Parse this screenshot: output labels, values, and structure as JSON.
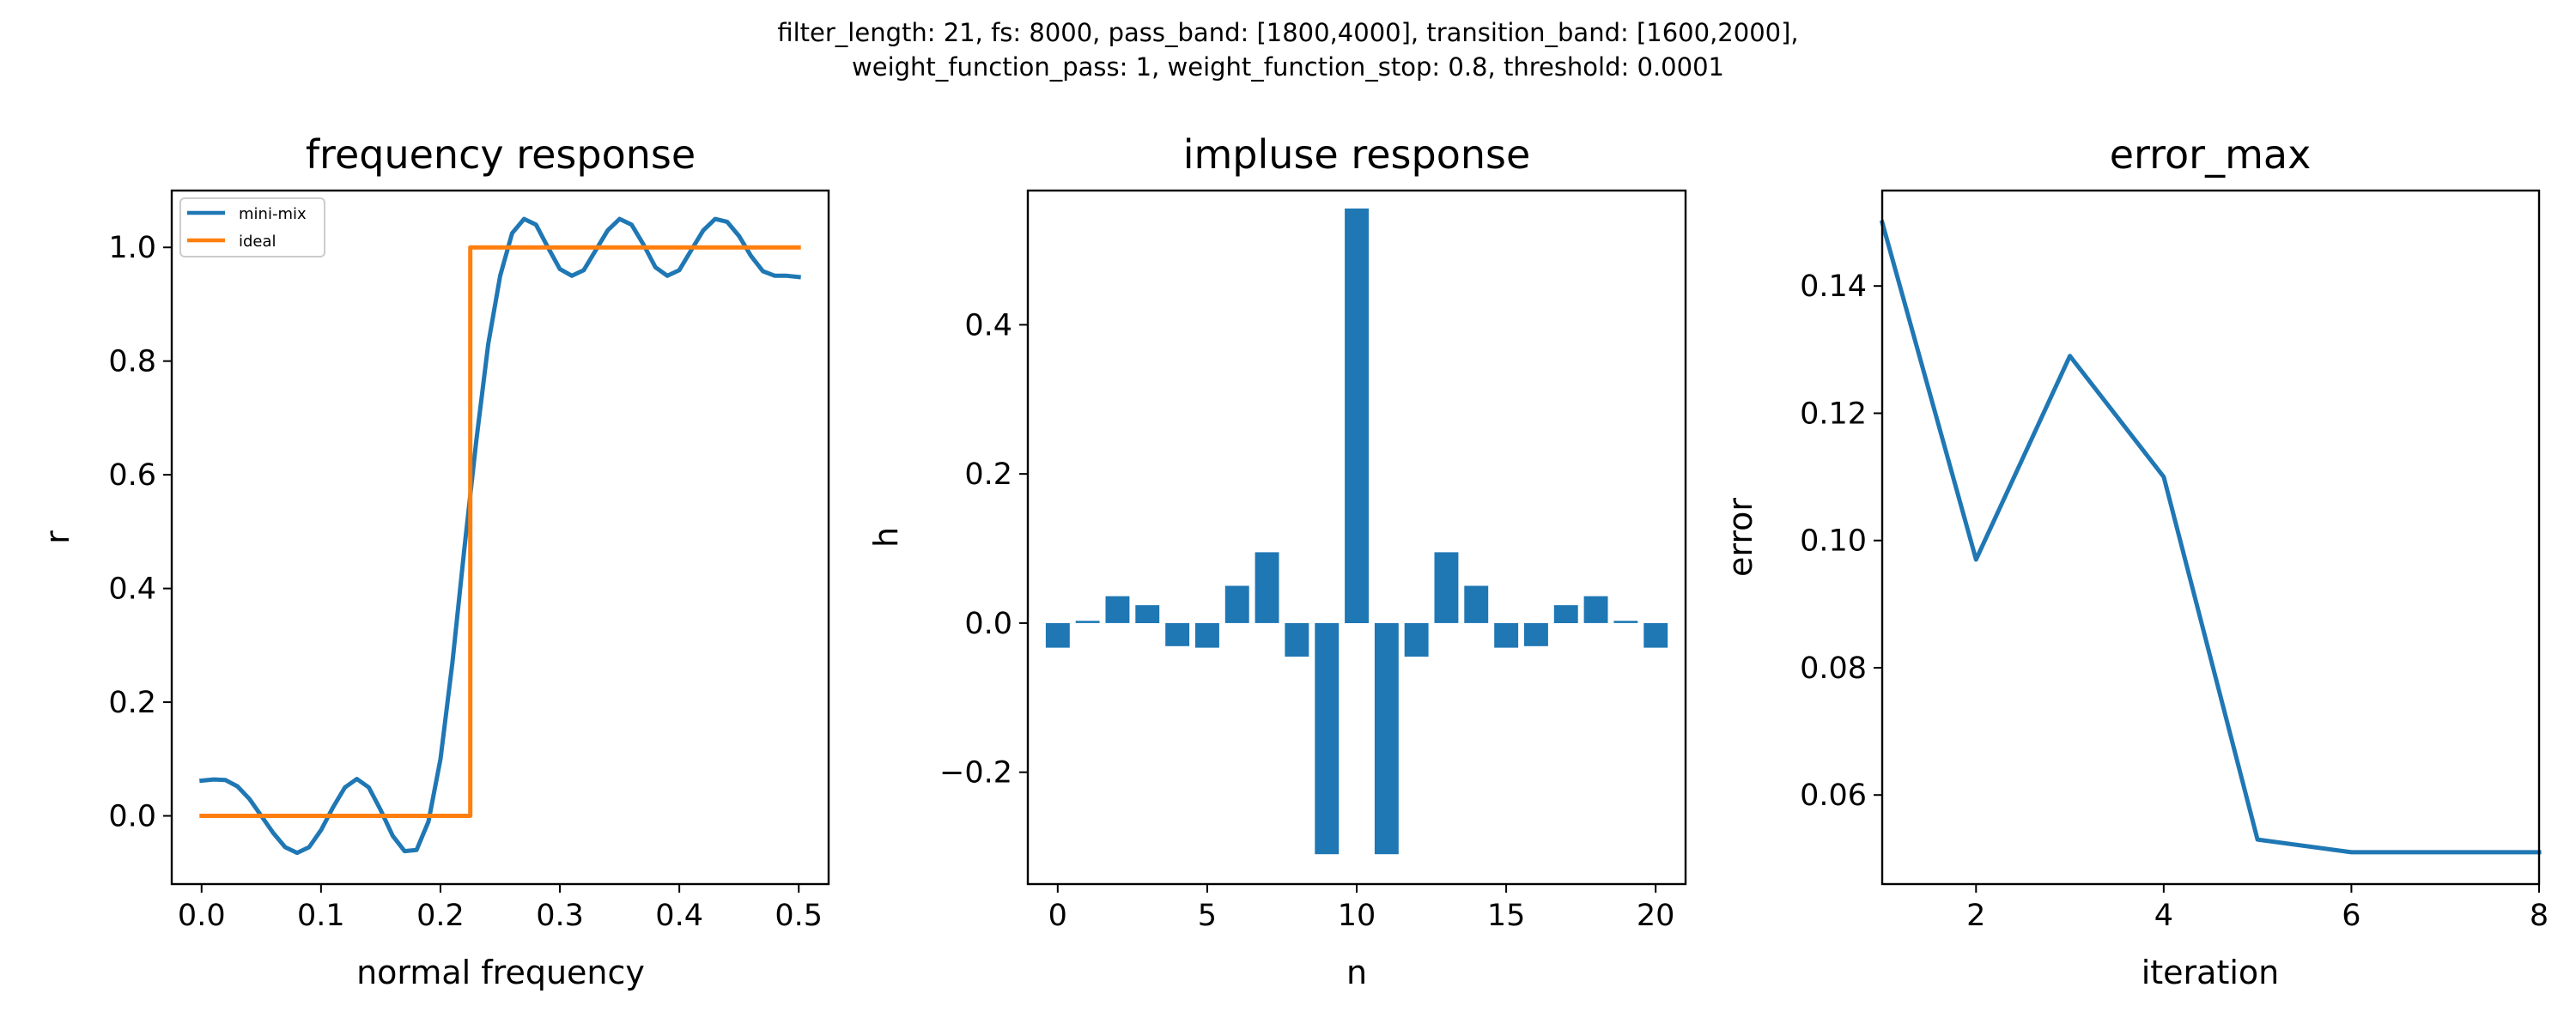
{
  "figure": {
    "suptitle_line1": "filter_length: 21, fs: 8000, pass_band: [1800,4000], transition_band: [1600,2000],",
    "suptitle_line2": "weight_function_pass: 1, weight_function_stop: 0.8,  threshold: 0.0001"
  },
  "colors": {
    "blue": "#1f77b4",
    "orange": "#ff7f0e"
  },
  "chart_data": [
    {
      "type": "line",
      "title": "frequency response",
      "xlabel": "normal frequency",
      "ylabel": "r",
      "xlim": [
        -0.025,
        0.525
      ],
      "ylim": [
        -0.12,
        1.1
      ],
      "xticks": [
        0.0,
        0.1,
        0.2,
        0.3,
        0.4,
        0.5
      ],
      "xtick_labels": [
        "0.0",
        "0.1",
        "0.2",
        "0.3",
        "0.4",
        "0.5"
      ],
      "yticks": [
        0.0,
        0.2,
        0.4,
        0.6,
        0.8,
        1.0
      ],
      "ytick_labels": [
        "0.0",
        "0.2",
        "0.4",
        "0.6",
        "0.8",
        "1.0"
      ],
      "legend": "top-left",
      "series": [
        {
          "name": "mini-mix",
          "color": "#1f77b4",
          "x": [
            0.0,
            0.01,
            0.02,
            0.03,
            0.04,
            0.05,
            0.06,
            0.07,
            0.08,
            0.09,
            0.1,
            0.11,
            0.12,
            0.13,
            0.14,
            0.15,
            0.16,
            0.17,
            0.18,
            0.19,
            0.2,
            0.21,
            0.22,
            0.23,
            0.24,
            0.25,
            0.26,
            0.27,
            0.28,
            0.29,
            0.3,
            0.31,
            0.32,
            0.33,
            0.34,
            0.35,
            0.36,
            0.37,
            0.38,
            0.39,
            0.4,
            0.41,
            0.42,
            0.43,
            0.44,
            0.45,
            0.46,
            0.47,
            0.48,
            0.49,
            0.5
          ],
          "y": [
            0.062,
            0.064,
            0.063,
            0.052,
            0.03,
            0.0,
            -0.03,
            -0.055,
            -0.065,
            -0.055,
            -0.025,
            0.015,
            0.05,
            0.065,
            0.05,
            0.01,
            -0.035,
            -0.062,
            -0.06,
            -0.01,
            0.1,
            0.27,
            0.47,
            0.66,
            0.83,
            0.95,
            1.025,
            1.05,
            1.04,
            1.0,
            0.962,
            0.95,
            0.96,
            0.995,
            1.03,
            1.05,
            1.04,
            1.005,
            0.965,
            0.95,
            0.96,
            0.995,
            1.03,
            1.05,
            1.045,
            1.02,
            0.985,
            0.958,
            0.95,
            0.95,
            0.948
          ]
        },
        {
          "name": "ideal",
          "color": "#ff7f0e",
          "x": [
            0.0,
            0.225,
            0.225,
            0.5
          ],
          "y": [
            0.0,
            0.0,
            1.0,
            1.0
          ]
        }
      ]
    },
    {
      "type": "bar",
      "title": "impluse response",
      "xlabel": "n",
      "ylabel": "h",
      "xlim": [
        -1.0,
        21.0
      ],
      "ylim": [
        -0.35,
        0.58
      ],
      "xticks": [
        0,
        5,
        10,
        15,
        20
      ],
      "xtick_labels": [
        "0",
        "5",
        "10",
        "15",
        "20"
      ],
      "yticks": [
        -0.2,
        0.0,
        0.2,
        0.4
      ],
      "ytick_labels": [
        "−0.2",
        "0.0",
        "0.2",
        "0.4"
      ],
      "color": "#1f77b4",
      "categories": [
        0,
        1,
        2,
        3,
        4,
        5,
        6,
        7,
        8,
        9,
        10,
        11,
        12,
        13,
        14,
        15,
        16,
        17,
        18,
        19,
        20
      ],
      "values": [
        -0.033,
        0.003,
        0.036,
        0.024,
        -0.031,
        -0.033,
        0.05,
        0.095,
        -0.045,
        -0.31,
        0.556,
        -0.31,
        -0.045,
        0.095,
        0.05,
        -0.033,
        -0.031,
        0.024,
        0.036,
        0.003,
        -0.033
      ]
    },
    {
      "type": "line",
      "title": "error_max",
      "xlabel": "iteration",
      "ylabel": "error",
      "xlim": [
        1,
        8
      ],
      "ylim": [
        0.046,
        0.155
      ],
      "xticks": [
        2,
        4,
        6,
        8
      ],
      "xtick_labels": [
        "2",
        "4",
        "6",
        "8"
      ],
      "yticks": [
        0.06,
        0.08,
        0.1,
        0.12,
        0.14
      ],
      "ytick_labels": [
        "0.06",
        "0.08",
        "0.10",
        "0.12",
        "0.14"
      ],
      "series": [
        {
          "color": "#1f77b4",
          "x": [
            1,
            2,
            3,
            4,
            5,
            6,
            7,
            8
          ],
          "y": [
            0.15,
            0.097,
            0.129,
            0.11,
            0.053,
            0.051,
            0.051,
            0.051
          ]
        }
      ]
    }
  ]
}
